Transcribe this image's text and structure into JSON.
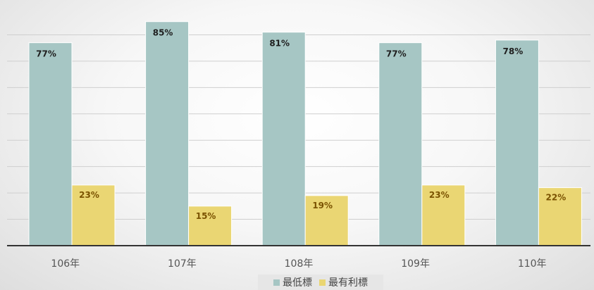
{
  "chart_data": {
    "type": "bar",
    "categories": [
      "106年",
      "107年",
      "108年",
      "109年",
      "110年"
    ],
    "series": [
      {
        "name": "最低標",
        "values": [
          77,
          85,
          81,
          77,
          78
        ],
        "labels": [
          "77%",
          "85%",
          "81%",
          "77%",
          "78%"
        ],
        "color": "#a6c6c4"
      },
      {
        "name": "最有利標",
        "values": [
          23,
          15,
          19,
          23,
          22
        ],
        "labels": [
          "23%",
          "15%",
          "19%",
          "23%",
          "22%"
        ],
        "color": "#ead673"
      }
    ],
    "ylim": [
      0,
      90
    ],
    "grid": true,
    "legend": "bottom"
  }
}
